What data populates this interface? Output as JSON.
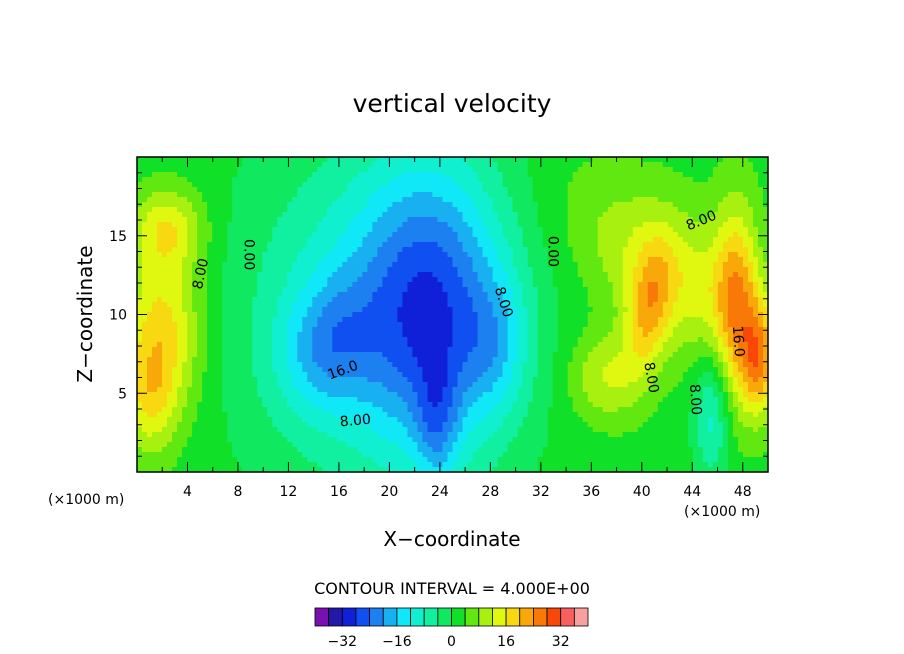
{
  "chart_data": {
    "type": "heatmap",
    "title": "vertical velocity",
    "xlabel": "X−coordinate",
    "ylabel": "Z−coordinate",
    "x_unit_label": "(×1000 m)",
    "x_unit_label_right": "(×1000 m)",
    "xlim": [
      0,
      50
    ],
    "ylim": [
      0,
      20
    ],
    "x_ticks": [
      4,
      8,
      12,
      16,
      20,
      24,
      28,
      32,
      36,
      40,
      44,
      48
    ],
    "x_tick_labels": [
      "4",
      "8",
      "12",
      "16",
      "20",
      "24",
      "28",
      "32",
      "36",
      "40",
      "44",
      "48"
    ],
    "y_ticks": [
      5,
      10,
      15
    ],
    "y_tick_labels": [
      "5",
      "10",
      "15"
    ],
    "contour_interval_text": "CONTOUR INTERVAL = 4.000E+00",
    "contour_interval": 4,
    "contour_labels": [
      {
        "text": "8.00",
        "x": 5.0,
        "y": 12.6,
        "rotate": -78
      },
      {
        "text": "0.00",
        "x": 8.9,
        "y": 13.8,
        "rotate": 90
      },
      {
        "text": "16.0",
        "x": 16.3,
        "y": 6.5,
        "rotate": -20
      },
      {
        "text": "8.00",
        "x": 17.3,
        "y": 3.3,
        "rotate": -5
      },
      {
        "text": "8.00",
        "x": 29.1,
        "y": 10.8,
        "rotate": 72
      },
      {
        "text": "0.00",
        "x": 33.0,
        "y": 14.0,
        "rotate": 90
      },
      {
        "text": "8.00",
        "x": 44.7,
        "y": 16.0,
        "rotate": -22
      },
      {
        "text": "8.00",
        "x": 40.8,
        "y": 6.0,
        "rotate": 80
      },
      {
        "text": "16.0",
        "x": 47.7,
        "y": 8.3,
        "rotate": 86
      },
      {
        "text": "8.00",
        "x": 44.3,
        "y": 4.6,
        "rotate": 86
      }
    ],
    "colorbar": {
      "ticks": [
        -32,
        -16,
        0,
        16,
        32
      ],
      "tick_labels": [
        "−32",
        "−16",
        "0",
        "16",
        "32"
      ],
      "levels": [
        -36,
        -32,
        -28,
        -24,
        -20,
        -16,
        -12,
        -8,
        -4,
        0,
        4,
        8,
        12,
        16,
        20,
        24,
        28,
        32,
        36
      ],
      "colors": [
        "#7b10b0",
        "#2418a8",
        "#1020d8",
        "#1050f0",
        "#1c80f0",
        "#18b0f0",
        "#10e8f8",
        "#10f0d0",
        "#10f0a0",
        "#10e860",
        "#10e028",
        "#60e810",
        "#a8f010",
        "#e0f810",
        "#f8d810",
        "#f8a808",
        "#f87808",
        "#f84808",
        "#f86060",
        "#f8a0a0"
      ]
    },
    "blobs": [
      {
        "v": 8,
        "cx": 2.0,
        "cy": 9.0,
        "sx": 2.2,
        "sy": 3.8,
        "a": 0
      },
      {
        "v": 6,
        "cx": 2.5,
        "cy": 15.5,
        "sx": 2.0,
        "sy": 1.8,
        "a": 0
      },
      {
        "v": 5,
        "cx": 1.0,
        "cy": 4.5,
        "sx": 1.5,
        "sy": 2.5,
        "a": 0
      },
      {
        "v": -7,
        "cx": 19.0,
        "cy": 10.0,
        "sx": 7.5,
        "sy": 8.0,
        "a": 0
      },
      {
        "v": -10,
        "cx": 23.5,
        "cy": 10.5,
        "sx": 4.0,
        "sy": 6.5,
        "a": 0
      },
      {
        "v": -6,
        "cx": 15.0,
        "cy": 8.0,
        "sx": 2.5,
        "sy": 3.0,
        "a": -25
      },
      {
        "v": -4,
        "cx": 28.5,
        "cy": 8.0,
        "sx": 1.8,
        "sy": 3.0,
        "a": 0
      },
      {
        "v": -5,
        "cx": 23.8,
        "cy": 3.0,
        "sx": 1.2,
        "sy": 3.0,
        "a": 0
      },
      {
        "v": 6,
        "cx": 42.5,
        "cy": 12.5,
        "sx": 6.0,
        "sy": 3.0,
        "a": -30
      },
      {
        "v": 7,
        "cx": 40.5,
        "cy": 10.0,
        "sx": 1.2,
        "sy": 3.0,
        "a": -10
      },
      {
        "v": 8,
        "cx": 47.5,
        "cy": 11.0,
        "sx": 1.2,
        "sy": 4.5,
        "a": 0
      },
      {
        "v": 9,
        "cx": 49.3,
        "cy": 7.0,
        "sx": 1.0,
        "sy": 2.5,
        "a": 0
      },
      {
        "v": -6,
        "cx": 45.5,
        "cy": 3.5,
        "sx": 1.0,
        "sy": 3.0,
        "a": 0
      },
      {
        "v": 5,
        "cx": 37.0,
        "cy": 6.0,
        "sx": 2.0,
        "sy": 2.0,
        "a": 0
      }
    ]
  }
}
